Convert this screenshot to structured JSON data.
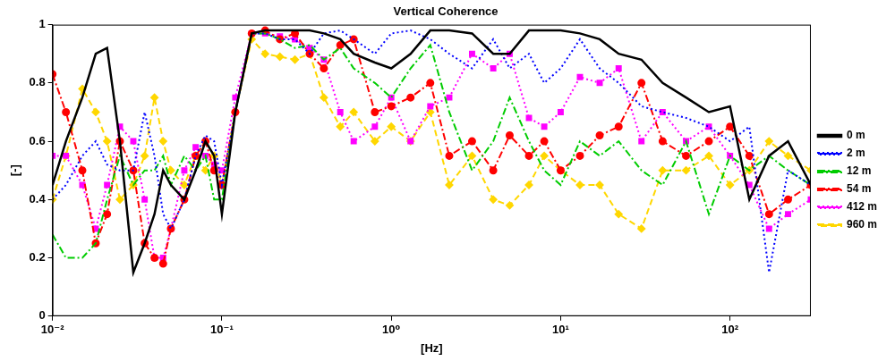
{
  "chart_data": {
    "type": "line",
    "title": "Vertical Coherence",
    "x_label": "[Hz]",
    "y_label": "[-]",
    "log": "x",
    "grid": false,
    "legend": "right",
    "x": [
      0.01,
      0.012,
      0.015,
      0.018,
      0.021,
      0.025,
      0.03,
      0.035,
      0.04,
      0.045,
      0.05,
      0.06,
      0.07,
      0.08,
      0.09,
      0.1,
      0.12,
      0.15,
      0.18,
      0.22,
      0.27,
      0.33,
      0.4,
      0.5,
      0.6,
      0.8,
      1,
      1.3,
      1.7,
      2.2,
      3,
      4,
      5,
      6.5,
      8,
      10,
      13,
      17,
      22,
      30,
      40,
      55,
      75,
      100,
      130,
      170,
      220,
      300
    ],
    "xlim": [
      0.01,
      300
    ],
    "xticks": [
      {
        "value": 0.01,
        "label": "10⁻²"
      },
      {
        "value": 0.1,
        "label": "10⁻¹"
      },
      {
        "value": 1,
        "label": "10⁰"
      },
      {
        "value": 10,
        "label": "10¹"
      },
      {
        "value": 100,
        "label": "10²"
      }
    ],
    "ylim": [
      0,
      1
    ],
    "yticks": [
      0,
      0.2,
      0.4,
      0.6,
      0.8,
      1
    ],
    "series": [
      {
        "name": "0 m",
        "color": "#000000",
        "line_style": "solid",
        "marker": "none",
        "values": [
          0.45,
          0.6,
          0.75,
          0.9,
          0.92,
          0.6,
          0.15,
          0.25,
          0.35,
          0.5,
          0.45,
          0.4,
          0.5,
          0.6,
          0.55,
          0.35,
          0.7,
          0.97,
          0.98,
          0.98,
          0.98,
          0.98,
          0.97,
          0.95,
          0.9,
          0.87,
          0.85,
          0.9,
          0.98,
          0.98,
          0.97,
          0.9,
          0.9,
          0.98,
          0.98,
          0.98,
          0.97,
          0.95,
          0.9,
          0.88,
          0.8,
          0.75,
          0.7,
          0.72,
          0.4,
          0.55,
          0.6,
          0.45
        ]
      },
      {
        "name": "2 m",
        "color": "#0000ff",
        "line_style": "dotted",
        "marker": "none",
        "values": [
          0.4,
          0.45,
          0.55,
          0.6,
          0.52,
          0.5,
          0.5,
          0.7,
          0.55,
          0.35,
          0.3,
          0.4,
          0.55,
          0.62,
          0.6,
          0.45,
          0.7,
          0.97,
          0.97,
          0.95,
          0.95,
          0.9,
          0.97,
          0.98,
          0.95,
          0.9,
          0.97,
          0.98,
          0.95,
          0.9,
          0.85,
          0.95,
          0.85,
          0.9,
          0.8,
          0.85,
          0.95,
          0.85,
          0.8,
          0.72,
          0.7,
          0.68,
          0.65,
          0.6,
          0.65,
          0.15,
          0.5,
          0.45
        ]
      },
      {
        "name": "12 m",
        "color": "#00cc00",
        "line_style": "dashdot",
        "marker": "none",
        "values": [
          0.28,
          0.2,
          0.2,
          0.25,
          0.4,
          0.55,
          0.45,
          0.5,
          0.5,
          0.55,
          0.45,
          0.55,
          0.5,
          0.55,
          0.4,
          0.4,
          0.7,
          0.97,
          0.97,
          0.95,
          0.92,
          0.93,
          0.88,
          0.92,
          0.85,
          0.8,
          0.75,
          0.85,
          0.93,
          0.7,
          0.5,
          0.6,
          0.75,
          0.6,
          0.5,
          0.45,
          0.6,
          0.55,
          0.6,
          0.5,
          0.45,
          0.6,
          0.35,
          0.55,
          0.5,
          0.55,
          0.5,
          0.45
        ]
      },
      {
        "name": "54 m",
        "color": "#ff0000",
        "line_style": "dashdot",
        "marker": "circle",
        "values": [
          0.83,
          0.7,
          0.5,
          0.25,
          0.35,
          0.6,
          0.5,
          0.25,
          0.2,
          0.18,
          0.3,
          0.4,
          0.55,
          0.6,
          0.5,
          0.45,
          0.7,
          0.97,
          0.98,
          0.95,
          0.97,
          0.9,
          0.85,
          0.93,
          0.95,
          0.7,
          0.72,
          0.75,
          0.8,
          0.55,
          0.6,
          0.5,
          0.62,
          0.55,
          0.6,
          0.5,
          0.55,
          0.62,
          0.65,
          0.8,
          0.6,
          0.55,
          0.6,
          0.65,
          0.55,
          0.35,
          0.4,
          0.45
        ]
      },
      {
        "name": "412 m",
        "color": "#ff00ff",
        "line_style": "dotted",
        "marker": "square",
        "values": [
          0.55,
          0.55,
          0.45,
          0.3,
          0.45,
          0.65,
          0.6,
          0.4,
          0.2,
          0.2,
          0.3,
          0.5,
          0.58,
          0.55,
          0.52,
          0.5,
          0.75,
          0.97,
          0.97,
          0.96,
          0.95,
          0.92,
          0.88,
          0.7,
          0.6,
          0.65,
          0.75,
          0.6,
          0.72,
          0.75,
          0.9,
          0.85,
          0.9,
          0.68,
          0.65,
          0.7,
          0.82,
          0.8,
          0.85,
          0.6,
          0.7,
          0.6,
          0.65,
          0.55,
          0.45,
          0.3,
          0.35,
          0.4
        ]
      },
      {
        "name": "960 m",
        "color": "#ffd700",
        "line_style": "dashed",
        "marker": "diamond",
        "values": [
          0.4,
          0.55,
          0.78,
          0.7,
          0.6,
          0.4,
          0.45,
          0.55,
          0.75,
          0.6,
          0.5,
          0.45,
          0.55,
          0.5,
          0.55,
          0.45,
          0.7,
          0.95,
          0.9,
          0.89,
          0.88,
          0.9,
          0.75,
          0.65,
          0.7,
          0.6,
          0.65,
          0.6,
          0.7,
          0.45,
          0.55,
          0.4,
          0.38,
          0.45,
          0.55,
          0.5,
          0.45,
          0.45,
          0.35,
          0.3,
          0.5,
          0.5,
          0.55,
          0.45,
          0.5,
          0.6,
          0.55,
          0.5
        ]
      }
    ]
  }
}
